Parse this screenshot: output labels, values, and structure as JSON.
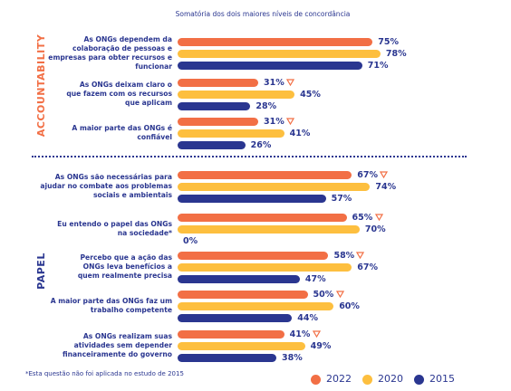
{
  "chart_data": {
    "type": "bar",
    "subtitle": "Somatória dos dois maiores níveis de concordância",
    "note": "*Esta questão não foi aplicada no estudo de 2015",
    "series": [
      {
        "name": "2022",
        "color": "#f26f45"
      },
      {
        "name": "2020",
        "color": "#fdbf3f"
      },
      {
        "name": "2015",
        "color": "#2a3690"
      }
    ],
    "sections": [
      {
        "label": "ACCOUNTABILITY",
        "label_color": "#f26f45",
        "categories": [
          "As ONGs dependem da\ncolaboração de pessoas e\nempresas para obter recursos e\nfuncionar",
          "As ONGs deixam claro o\nque fazem com os recursos\nque aplicam",
          "A maior parte das ONGs é\nconfiável"
        ],
        "decrease_marker": [
          false,
          true,
          true
        ],
        "series": [
          {
            "values": [
              75,
              31,
              31
            ],
            "value_labels": [
              "75%",
              "31%",
              "31%"
            ]
          },
          {
            "values": [
              78,
              45,
              41
            ],
            "value_labels": [
              "78%",
              "45%",
              "41%"
            ]
          },
          {
            "values": [
              71,
              28,
              26
            ],
            "value_labels": [
              "71%",
              "28%",
              "26%"
            ]
          }
        ]
      },
      {
        "label": "PAPEL",
        "label_color": "#2a3690",
        "categories": [
          "As ONGs são necessárias para\najudar no combate aos problemas\nsociais e ambientais",
          "Eu entendo o papel das ONGs\nna sociedade*",
          "Percebo que a ação das\nONGs leva benefícios a\nquem realmente precisa",
          "A maior parte das ONGs faz um\ntrabalho competente",
          "As ONGs realizam suas\natividades sem depender\nfinanceiramente do governo"
        ],
        "decrease_marker": [
          true,
          true,
          true,
          true,
          true
        ],
        "series": [
          {
            "values": [
              67,
              65,
              58,
              50,
              41
            ],
            "value_labels": [
              "67%",
              "65%",
              "58%",
              "50%",
              "41%"
            ]
          },
          {
            "values": [
              74,
              70,
              67,
              60,
              49
            ],
            "value_labels": [
              "74%",
              "70%",
              "67%",
              "60%",
              "49%"
            ]
          },
          {
            "values": [
              57,
              0,
              47,
              44,
              38
            ],
            "value_labels": [
              "57%",
              "0%",
              "47%",
              "44%",
              "38%"
            ]
          }
        ]
      }
    ]
  }
}
